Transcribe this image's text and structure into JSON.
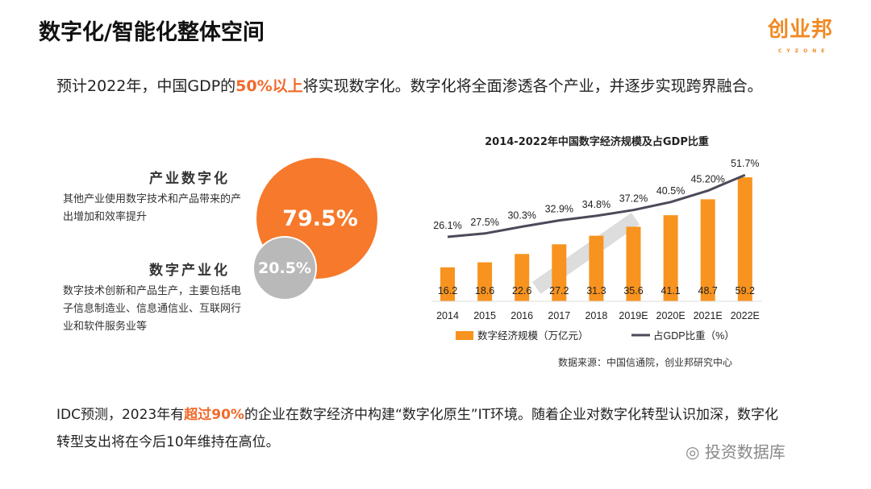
{
  "title": "数字化/智能化整体空间",
  "logo": {
    "text": "创业邦",
    "sub": "CYZONE"
  },
  "intro": {
    "pre": "预计2022年，中国GDP的",
    "highlight": "50%以上",
    "post": "将实现数字化。数字化将全面渗透各个产业，并逐步实现跨界融合。"
  },
  "industry_digitization": {
    "title": "产业数字化",
    "desc": "其他产业使用数字技术和产品带来的产出增加和效率提升",
    "value": "79.5%"
  },
  "digital_industrialization": {
    "title": "数字产业化",
    "desc": "数字技术创新和产品生产，主要包括电子信息制造业、信息通信业、互联网行业和软件服务业等",
    "value": "20.5%"
  },
  "colors": {
    "accent": "#f7792b",
    "bar": "#f7931e",
    "line": "#4a4a5a",
    "grey": "#b9b9b9"
  },
  "chart_data": {
    "type": "bar+line",
    "title": "2014-2022年中国数字经济规模及占GDP比重",
    "categories": [
      "2014",
      "2015",
      "2016",
      "2017",
      "2018",
      "2019E",
      "2020E",
      "2021E",
      "2022E"
    ],
    "series": [
      {
        "name": "数字经济规模（万亿元）",
        "type": "bar",
        "values": [
          16.2,
          18.6,
          22.6,
          27.2,
          31.3,
          35.6,
          41.1,
          48.7,
          59.2
        ],
        "labels": [
          "16.2",
          "18.6",
          "22.6",
          "27.2",
          "31.3",
          "35.6",
          "41.1",
          "48.7",
          "59.2"
        ]
      },
      {
        "name": "占GDP比重（%）",
        "type": "line",
        "values": [
          26.1,
          27.5,
          30.3,
          32.9,
          34.8,
          37.2,
          40.5,
          45.2,
          51.7
        ],
        "labels": [
          "26.1%",
          "27.5%",
          "30.3%",
          "32.9%",
          "34.8%",
          "37.2%",
          "40.5%",
          "45.20%",
          "51.7%"
        ]
      }
    ],
    "legend": "bottom",
    "grid": false,
    "source": "数据来源：中国信通院，创业邦研究中心",
    "watermark": "创业邦研究中心"
  },
  "bottom": {
    "pre": "IDC预测，2023年有",
    "highlight": "超过90%",
    "post": "的企业在数字经济中构建“数字化原生”IT环境。随着企业对数字化转型认识加深，数字化转型支出将在今后10年维持在高位。"
  },
  "wechat_watermark": "投资数据库"
}
